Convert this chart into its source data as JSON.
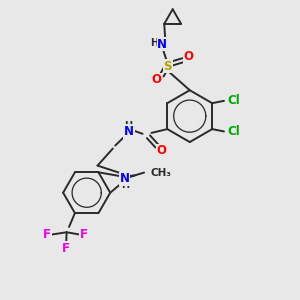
{
  "background_color": "#e8e8e8",
  "bond_color": "#2a2a2a",
  "bond_width": 1.4,
  "atom_colors": {
    "N": "#0000ff",
    "O": "#ff0000",
    "S": "#b8a000",
    "Cl": "#00aa00",
    "F": "#ee00ee",
    "H": "#2a2a2a",
    "C": "#2a2a2a"
  },
  "font_size_main": 8.5,
  "font_size_small": 7.0
}
